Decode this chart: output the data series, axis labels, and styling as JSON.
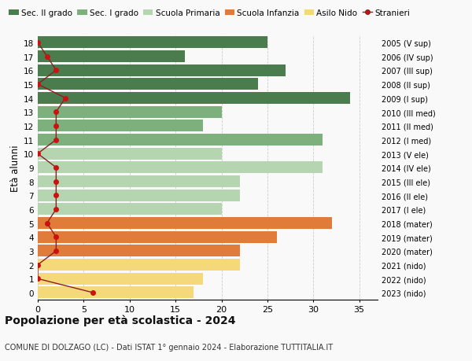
{
  "ages": [
    18,
    17,
    16,
    15,
    14,
    13,
    12,
    11,
    10,
    9,
    8,
    7,
    6,
    5,
    4,
    3,
    2,
    1,
    0
  ],
  "bar_values": [
    25,
    16,
    27,
    24,
    34,
    20,
    18,
    31,
    20,
    31,
    22,
    22,
    20,
    32,
    26,
    22,
    22,
    18,
    17
  ],
  "stranieri": [
    0,
    1,
    2,
    0,
    3,
    2,
    2,
    2,
    0,
    2,
    2,
    2,
    2,
    1,
    2,
    2,
    0,
    0,
    6
  ],
  "right_labels": [
    "2005 (V sup)",
    "2006 (IV sup)",
    "2007 (III sup)",
    "2008 (II sup)",
    "2009 (I sup)",
    "2010 (III med)",
    "2011 (II med)",
    "2012 (I med)",
    "2013 (V ele)",
    "2014 (IV ele)",
    "2015 (III ele)",
    "2016 (II ele)",
    "2017 (I ele)",
    "2018 (mater)",
    "2019 (mater)",
    "2020 (mater)",
    "2021 (nido)",
    "2022 (nido)",
    "2023 (nido)"
  ],
  "bar_colors": [
    "#4a7c4e",
    "#4a7c4e",
    "#4a7c4e",
    "#4a7c4e",
    "#4a7c4e",
    "#7db07d",
    "#7db07d",
    "#7db07d",
    "#b5d4b0",
    "#b5d4b0",
    "#b5d4b0",
    "#b5d4b0",
    "#b5d4b0",
    "#e07b39",
    "#e07b39",
    "#e07b39",
    "#f5d87a",
    "#f5d87a",
    "#f5d87a"
  ],
  "legend_labels": [
    "Sec. II grado",
    "Sec. I grado",
    "Scuola Primaria",
    "Scuola Infanzia",
    "Asilo Nido",
    "Stranieri"
  ],
  "legend_colors": [
    "#4a7c4e",
    "#7db07d",
    "#b5d4b0",
    "#e07b39",
    "#f5d87a",
    "#cc1111"
  ],
  "ylabel": "Età alunni",
  "title": "Popolazione per età scolastica - 2024",
  "subtitle": "COMUNE DI DOLZAGO (LC) - Dati ISTAT 1° gennaio 2024 - Elaborazione TUTTITALIA.IT",
  "xlim": [
    0,
    37
  ],
  "background_color": "#f9f9f9",
  "grid_color": "#cccccc",
  "stranieri_line_color": "#882222",
  "stranieri_marker_color": "#cc1111"
}
